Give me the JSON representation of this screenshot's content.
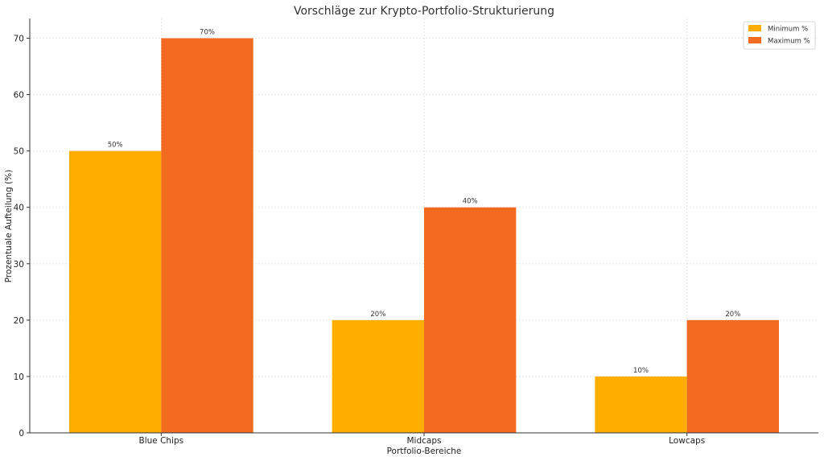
{
  "chart_data": {
    "type": "bar",
    "title": "Vorschläge zur Krypto-Portfolio-Strukturierung",
    "xlabel": "Portfolio-Bereiche",
    "ylabel": "Prozentuale Aufteilung (%)",
    "categories": [
      "Blue Chips",
      "Midcaps",
      "Lowcaps"
    ],
    "series": [
      {
        "name": "Minimum %",
        "values": [
          50,
          20,
          10
        ],
        "labels": [
          "50%",
          "20%",
          "10%"
        ],
        "color": "#FFAE00"
      },
      {
        "name": "Maximum %",
        "values": [
          70,
          40,
          20
        ],
        "labels": [
          "70%",
          "40%",
          "20%"
        ],
        "color": "#F26B21"
      }
    ],
    "ylim": [
      0,
      73.5
    ],
    "yticks": [
      0,
      10,
      20,
      30,
      40,
      50,
      60,
      70
    ],
    "grid": true,
    "legend_position": "top-right"
  }
}
